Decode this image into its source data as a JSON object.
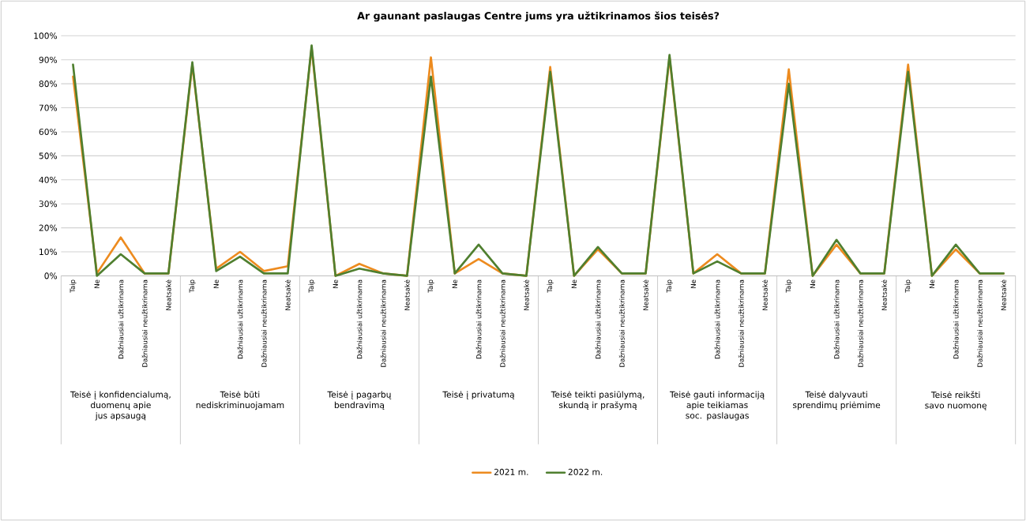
{
  "chart_data": {
    "type": "line",
    "title": "Ar gaunant paslaugas Centre jums yra užtikrinamos šios teisės?",
    "categories": [
      "Taip",
      "Ne",
      "Dažniausiai užtikrinama",
      "Dažniausiai neužtikrinama",
      "Neatsakė",
      "Taip",
      "Ne",
      "Dažniausiai užtikrinama",
      "Dažniausiai neužtikrinama",
      "Neatsakė",
      "Taip",
      "Ne",
      "Dažniausiai užtikrinama",
      "Dažniausiai neužtikrinama",
      "Neatsakė",
      "Taip",
      "Ne",
      "Dažniausiai užtikrinama",
      "Dažniausiai neužtikrinama",
      "Neatsakė",
      "Taip",
      "Ne",
      "Dažniausiai užtikrinama",
      "Dažniausiai neužtikrinama",
      "Neatsakė",
      "Taip",
      "Ne",
      "Dažniausiai užtikrinama",
      "Dažniausiai neužtikrinama",
      "Neatsakė",
      "Taip",
      "Ne",
      "Dažniausiai užtikrinama",
      "Dažniausiai neužtikrinama",
      "Neatsakė",
      "Taip",
      "Ne",
      "Dažniausiai užtikrinama",
      "Dažniausiai neužtikrinama",
      "Neatsakė"
    ],
    "series": [
      {
        "name": "2021 m.",
        "color": "#ed8b1f",
        "values": [
          83,
          1,
          16,
          1,
          1,
          88,
          3,
          10,
          2,
          4,
          95,
          0,
          5,
          1,
          0,
          91,
          1,
          7,
          1,
          0,
          87,
          0,
          11,
          1,
          1,
          91,
          1,
          9,
          1,
          1,
          86,
          0,
          13,
          1,
          1,
          88,
          0,
          11,
          1,
          1
        ]
      },
      {
        "name": "2022 m.",
        "color": "#4f7f2f",
        "values": [
          88,
          0,
          9,
          1,
          1,
          89,
          2,
          8,
          1,
          1,
          96,
          0,
          3,
          1,
          0,
          83,
          1,
          13,
          1,
          0,
          85,
          0,
          12,
          1,
          1,
          92,
          1,
          6,
          1,
          1,
          80,
          0,
          15,
          1,
          1,
          85,
          0,
          13,
          1,
          1
        ]
      }
    ],
    "annotations": [
      "Teisė į konfidencialumą, duomenų apie jus apsaugą",
      "Teisė būti nediskriminuojamam",
      "Teisė į pagarbų bendravimą",
      "Teisė į privatumą",
      "Teisė teikti pasiūlymą, skundą ir prašymą",
      "Teisė gauti informaciją apie teikiamas soc. paslaugas",
      "Teisė dalyvauti sprendimų priėmime",
      "Teisė reikšti savo nuomonę"
    ],
    "ylim": [
      0,
      100
    ],
    "yticks": [
      {
        "value": 0,
        "label": "0%"
      },
      {
        "value": 10,
        "label": "10%"
      },
      {
        "value": 20,
        "label": "20%"
      },
      {
        "value": 30,
        "label": "30%"
      },
      {
        "value": 40,
        "label": "40%"
      },
      {
        "value": 50,
        "label": "50%"
      },
      {
        "value": 60,
        "label": "60%"
      },
      {
        "value": 70,
        "label": "70%"
      },
      {
        "value": 80,
        "label": "80%"
      },
      {
        "value": 90,
        "label": "90%"
      },
      {
        "value": 100,
        "label": "100%"
      }
    ],
    "grid": "y",
    "legend": "bottom",
    "marker": "none",
    "line_style": "solid"
  }
}
